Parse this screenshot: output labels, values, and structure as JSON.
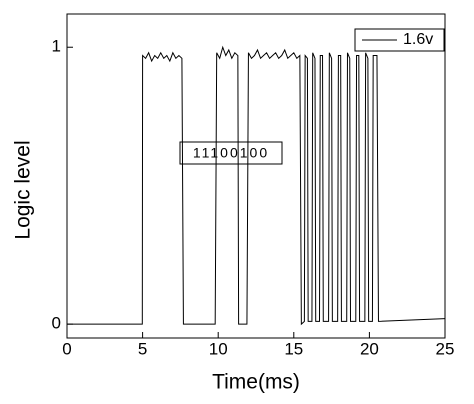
{
  "chart_data": {
    "type": "line",
    "xlabel": "Time(ms)",
    "ylabel": "Logic level",
    "annotation": "11100100",
    "xlim": [
      0,
      25
    ],
    "xticks": [
      0,
      5,
      10,
      15,
      20,
      25
    ],
    "ylim": [
      -0.05,
      1.12
    ],
    "yticks": [
      0,
      1
    ],
    "legend": "top-right",
    "x": [
      0,
      4.98,
      5.0,
      5.2,
      5.4,
      5.6,
      5.8,
      6.0,
      6.2,
      6.4,
      6.6,
      6.8,
      7.0,
      7.2,
      7.4,
      7.6,
      7.7,
      9.8,
      9.9,
      10.1,
      10.3,
      10.5,
      10.7,
      10.9,
      11.1,
      11.3,
      11.35,
      11.9,
      12.0,
      12.2,
      12.4,
      12.6,
      12.8,
      13.0,
      13.2,
      13.4,
      13.6,
      13.8,
      14.0,
      14.2,
      14.4,
      14.6,
      14.8,
      15.0,
      15.2,
      15.4,
      15.5,
      15.7,
      15.75,
      15.9,
      15.95,
      16.2,
      16.25,
      16.4,
      16.45,
      16.7,
      16.75,
      16.9,
      16.95,
      17.3,
      17.35,
      17.5,
      17.55,
      17.9,
      17.95,
      18.1,
      18.15,
      18.5,
      18.55,
      18.7,
      18.75,
      19.1,
      19.15,
      19.3,
      19.35,
      19.7,
      19.75,
      19.9,
      19.95,
      20.2,
      20.25,
      20.5,
      20.6,
      25
    ],
    "series": [
      {
        "name": "1.6v",
        "color": "#000000",
        "values": [
          0,
          0,
          0.97,
          0.96,
          0.98,
          0.95,
          0.97,
          0.96,
          0.98,
          0.96,
          0.97,
          0.95,
          0.98,
          0.96,
          0.97,
          0.96,
          0,
          0,
          0.98,
          0.96,
          1.0,
          0.97,
          0.99,
          0.96,
          0.98,
          0.97,
          0,
          0,
          0.98,
          0.96,
          0.97,
          0.99,
          0.96,
          0.97,
          0.98,
          0.96,
          0.97,
          0.98,
          0.96,
          0.97,
          0.99,
          0.96,
          0.97,
          0.98,
          0.96,
          0.97,
          0,
          0.01,
          0.97,
          0.96,
          0.01,
          0.01,
          0.98,
          0.96,
          0.01,
          0.01,
          0.97,
          0.97,
          0.01,
          0.01,
          0.98,
          0.96,
          0.01,
          0.01,
          0.97,
          0.97,
          0.01,
          0.01,
          0.98,
          0.96,
          0.01,
          0.01,
          0.97,
          0.97,
          0.01,
          0.01,
          0.98,
          0.96,
          0.01,
          0.01,
          0.97,
          0.97,
          0.01,
          0.02
        ]
      }
    ]
  }
}
